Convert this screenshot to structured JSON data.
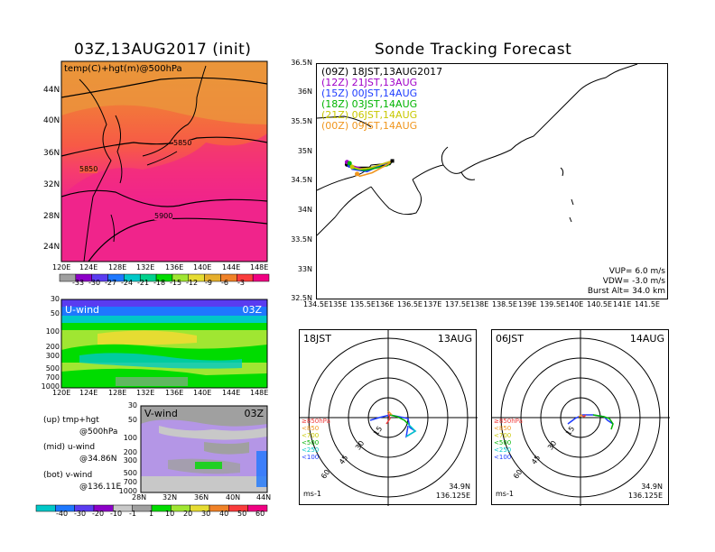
{
  "left_title": "03Z,13AUG2017 (init)",
  "right_title": "Sonde Tracking Forecast",
  "map500": {
    "label": "temp(C)+hgt(m)@500hPa",
    "contour_labels": [
      "5850",
      "5850",
      "5900"
    ],
    "lat_labels": [
      "44N",
      "40N",
      "36N",
      "32N",
      "28N",
      "24N"
    ],
    "lon_labels": [
      "120E",
      "124E",
      "128E",
      "132E",
      "136E",
      "140E",
      "144E",
      "148E"
    ],
    "colorbar_labels": [
      "-33",
      "-30",
      "-27",
      "-24",
      "-21",
      "-18",
      "-15",
      "-12",
      "-9",
      "-6",
      "-3"
    ],
    "colors": [
      "#a0a0a0",
      "#8c00c8",
      "#5a3cf0",
      "#1e78ff",
      "#00c8c8",
      "#00d28c",
      "#00dc00",
      "#a0e632",
      "#e6dc32",
      "#e6af2d",
      "#f08228",
      "#fa3c3c",
      "#f00082"
    ]
  },
  "uwind": {
    "label": "U-wind",
    "time": "03Z",
    "p_labels": [
      "30",
      "50",
      "100",
      "200",
      "300",
      "500",
      "700",
      "1000"
    ],
    "lon_labels": [
      "120E",
      "124E",
      "128E",
      "132E",
      "136E",
      "140E",
      "144E",
      "148E"
    ]
  },
  "vwind": {
    "label": "V-wind",
    "time": "03Z",
    "p_labels": [
      "30",
      "50",
      "100",
      "200",
      "300",
      "500",
      "700",
      "1000"
    ],
    "lat_labels": [
      "28N",
      "32N",
      "36N",
      "40N",
      "44N"
    ],
    "colorbar_labels": [
      "-40",
      "-30",
      "-20",
      "-10",
      "-1",
      "1",
      "10",
      "20",
      "30",
      "40",
      "50",
      "60"
    ],
    "colors": [
      "#00c8c8",
      "#1e78ff",
      "#5a3cf0",
      "#8c00c8",
      "#c8c8c8",
      "#a0a0a0",
      "#00dc00",
      "#a0e632",
      "#e6dc32",
      "#f08228",
      "#fa3c3c",
      "#f00082"
    ]
  },
  "legend_notes": {
    "up": "(up) tmp+hgt",
    "up2": "@500hPa",
    "mid": "(mid) u-wind",
    "mid2": "@34.86N",
    "bot": "(bot) v-wind",
    "bot2": "@136.11E"
  },
  "track": {
    "runs": [
      {
        "label": "(09Z) 18JST,13AUG2017",
        "color": "#000000"
      },
      {
        "label": "(12Z) 21JST,13AUG",
        "color": "#a000c8"
      },
      {
        "label": "(15Z) 00JST,14AUG",
        "color": "#1e3cff"
      },
      {
        "label": "(18Z) 03JST,14AUG",
        "color": "#00b400"
      },
      {
        "label": "(21Z) 06JST,14AUG",
        "color": "#c8c800"
      },
      {
        "label": "(00Z) 09JST,14AUG",
        "color": "#f0961e"
      }
    ],
    "lat_labels": [
      "36.5N",
      "36N",
      "35.5N",
      "35N",
      "34.5N",
      "34N",
      "33.5N",
      "33N",
      "32.5N"
    ],
    "lon_labels": [
      "134.5E",
      "135E",
      "135.5E",
      "136E",
      "136.5E",
      "137E",
      "137.5E",
      "138E",
      "138.5E",
      "139E",
      "139.5E",
      "140E",
      "140.5E",
      "141E",
      "141.5E"
    ],
    "vup": "VUP=  6.0  m/s",
    "vdw": "VDW= -3.0  m/s",
    "burst": "Burst Alt=  34.0  km"
  },
  "hodo1": {
    "time": "18JST",
    "date": "13AUG",
    "rings": [
      "15",
      "30",
      "45",
      "60"
    ],
    "levels": [
      "≥850hPa",
      "<850",
      "<700",
      "<500",
      "<250",
      "<100"
    ],
    "level_colors": [
      "#f03c3c",
      "#f0961e",
      "#c8c800",
      "#00b400",
      "#00c8c8",
      "#1e3cff"
    ],
    "lat": "34.9N",
    "lon": "136.125E",
    "units": "ms-1"
  },
  "hodo2": {
    "time": "06JST",
    "date": "14AUG",
    "rings": [
      "15",
      "30",
      "45",
      "60"
    ],
    "levels": [
      "≥850hPa",
      "<850",
      "<700",
      "<500",
      "<250",
      "<100"
    ],
    "level_colors": [
      "#f03c3c",
      "#f0961e",
      "#c8c800",
      "#00b400",
      "#00c8c8",
      "#1e3cff"
    ],
    "lat": "34.9N",
    "lon": "136.125E",
    "units": "ms-1"
  },
  "chart_data": {
    "type": "line",
    "title": "Sonde Tracking Forecast",
    "xlabel": "",
    "ylabel": "",
    "xlim": [
      134.5,
      141.5
    ],
    "ylim": [
      32.5,
      36.5
    ],
    "series": [
      {
        "name": "(09Z) 18JST,13AUG2017",
        "x": [
          136.0,
          135.95,
          135.6,
          135.25,
          135.1
        ],
        "y": [
          34.86,
          34.8,
          34.75,
          34.75,
          34.8
        ]
      },
      {
        "name": "(12Z) 21JST,13AUG",
        "x": [
          136.0,
          135.85,
          135.5,
          135.2,
          135.1
        ],
        "y": [
          34.86,
          34.82,
          34.7,
          34.78,
          34.84
        ]
      },
      {
        "name": "(15Z) 00JST,14AUG",
        "x": [
          136.0,
          135.8,
          135.5,
          135.2,
          135.15
        ],
        "y": [
          34.86,
          34.8,
          34.68,
          34.72,
          34.78
        ]
      },
      {
        "name": "(18Z) 03JST,14AUG",
        "x": [
          136.0,
          135.9,
          135.45,
          135.2,
          135.15
        ],
        "y": [
          34.86,
          34.78,
          34.7,
          34.74,
          34.82
        ]
      },
      {
        "name": "(21Z) 06JST,14AUG",
        "x": [
          136.0,
          135.85,
          135.55,
          135.35,
          135.2
        ],
        "y": [
          34.86,
          34.82,
          34.74,
          34.72,
          34.76
        ]
      },
      {
        "name": "(00Z) 09JST,14AUG",
        "x": [
          136.0,
          135.9,
          135.6,
          135.35,
          135.3
        ],
        "y": [
          34.86,
          34.8,
          34.66,
          34.6,
          34.64
        ]
      }
    ]
  }
}
